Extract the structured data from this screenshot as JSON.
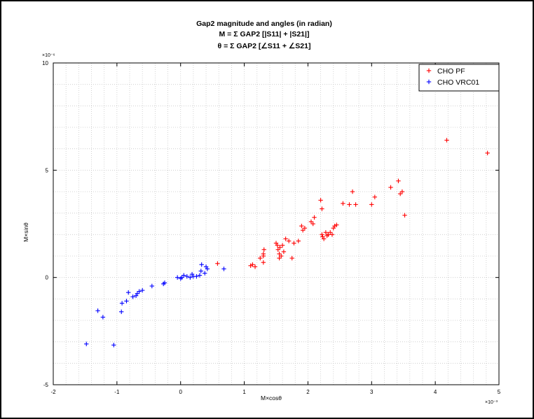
{
  "chart_data": {
    "type": "scatter",
    "title_lines": [
      "Gap2 magnitude and angles (in radian)",
      "M = Σ GAP2 [|S11| + |S21|]",
      "θ = Σ GAP2 [∠S11 + ∠S21]"
    ],
    "xlabel": "M×cosθ",
    "ylabel": "M×sinθ",
    "x_exponent": "×10⁻³",
    "y_exponent": "×10⁻⁶",
    "xlim": [
      -2,
      5
    ],
    "ylim": [
      -5,
      10
    ],
    "x_ticks": [
      -2,
      -1,
      0,
      1,
      2,
      3,
      4,
      5
    ],
    "y_ticks": [
      -5,
      0,
      5,
      10
    ],
    "grid": true,
    "legend_position": "top-right",
    "series": [
      {
        "name": "CHO PF",
        "color": "#ff0000",
        "marker": "+",
        "x": [
          0.58,
          1.1,
          1.13,
          1.17,
          1.25,
          1.3,
          1.3,
          1.3,
          1.31,
          1.5,
          1.52,
          1.53,
          1.55,
          1.55,
          1.56,
          1.58,
          1.6,
          1.62,
          1.65,
          1.7,
          1.75,
          1.78,
          1.85,
          1.9,
          1.92,
          1.95,
          2.05,
          2.08,
          2.1,
          2.2,
          2.22,
          2.22,
          2.23,
          2.25,
          2.28,
          2.3,
          2.32,
          2.35,
          2.38,
          2.4,
          2.42,
          2.45,
          2.55,
          2.65,
          2.7,
          2.75,
          3.0,
          3.05,
          3.3,
          3.42,
          3.45,
          3.48,
          3.52,
          4.18,
          4.82
        ],
        "y": [
          0.65,
          0.55,
          0.6,
          0.5,
          0.9,
          0.7,
          1.0,
          1.1,
          1.3,
          1.6,
          1.5,
          1.3,
          1.1,
          0.9,
          1.4,
          1.0,
          1.5,
          1.2,
          1.8,
          1.7,
          0.9,
          1.6,
          1.7,
          2.4,
          2.2,
          2.3,
          2.6,
          2.5,
          2.8,
          3.6,
          3.2,
          2.0,
          1.9,
          1.8,
          2.1,
          1.95,
          2.0,
          2.1,
          2.0,
          2.3,
          2.4,
          2.45,
          3.45,
          3.4,
          4.0,
          3.4,
          3.4,
          3.75,
          4.2,
          4.5,
          3.9,
          4.0,
          2.9,
          6.4,
          5.8
        ]
      },
      {
        "name": "CHO VRC01",
        "color": "#0000ff",
        "marker": "+",
        "x": [
          -1.48,
          -1.3,
          -1.22,
          -1.05,
          -0.93,
          -0.92,
          -0.85,
          -0.82,
          -0.75,
          -0.7,
          -0.68,
          -0.65,
          -0.6,
          -0.45,
          -0.27,
          -0.25,
          -0.05,
          0.0,
          0.02,
          0.05,
          0.1,
          0.15,
          0.18,
          0.2,
          0.25,
          0.3,
          0.32,
          0.33,
          0.38,
          0.4,
          0.42,
          0.68
        ],
        "y": [
          -3.1,
          -1.55,
          -1.85,
          -3.15,
          -1.6,
          -1.2,
          -1.1,
          -0.7,
          -0.9,
          -0.85,
          -0.75,
          -0.65,
          -0.6,
          -0.4,
          -0.3,
          -0.25,
          0.0,
          -0.05,
          0.0,
          0.1,
          0.05,
          0.0,
          0.15,
          0.05,
          0.05,
          0.1,
          0.3,
          0.6,
          0.2,
          0.5,
          0.4,
          0.4
        ]
      }
    ]
  }
}
